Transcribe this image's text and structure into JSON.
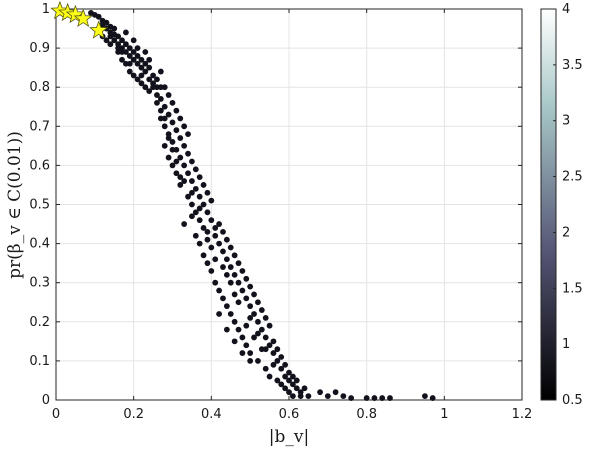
{
  "chart_data": {
    "type": "scatter",
    "title": "",
    "xlabel": "|b_v|",
    "ylabel": "pr(β_v ∈ C(0.01))",
    "xlim": [
      0,
      1.2
    ],
    "ylim": [
      0,
      1
    ],
    "grid": true,
    "xticks": [
      0,
      0.2,
      0.4,
      0.6,
      0.8,
      1,
      1.2
    ],
    "xtick_labels": [
      "0",
      "0.2",
      "0.4",
      "0.6",
      "0.8",
      "1",
      "1.2"
    ],
    "yticks": [
      0,
      0.1,
      0.2,
      0.3,
      0.4,
      0.5,
      0.6,
      0.7,
      0.8,
      0.9,
      1
    ],
    "ytick_labels": [
      "0",
      "0.1",
      "0.2",
      "0.3",
      "0.4",
      "0.5",
      "0.6",
      "0.7",
      "0.8",
      "0.9",
      "1"
    ],
    "colorbar": {
      "range": [
        0.5,
        4
      ],
      "ticks": [
        0.5,
        1,
        1.5,
        2,
        2.5,
        3,
        3.5,
        4
      ],
      "tick_labels": [
        "0.5",
        "1",
        "1.5",
        "2",
        "2.5",
        "3",
        "3.5",
        "4"
      ],
      "colormap": "bone"
    },
    "colors": {
      "points": "#12121c",
      "stars": "#ffff1a",
      "star_edge": "#5a5a10",
      "grid": "#e4e4e4",
      "axis": "#262626"
    },
    "stars": [
      {
        "x": 0.01,
        "y": 0.995
      },
      {
        "x": 0.03,
        "y": 0.99
      },
      {
        "x": 0.05,
        "y": 0.985
      },
      {
        "x": 0.07,
        "y": 0.975
      },
      {
        "x": 0.11,
        "y": 0.945
      }
    ],
    "points": [
      [
        0.09,
        0.99
      ],
      [
        0.1,
        0.985
      ],
      [
        0.11,
        0.98
      ],
      [
        0.12,
        0.97
      ],
      [
        0.12,
        0.96
      ],
      [
        0.13,
        0.965
      ],
      [
        0.13,
        0.95
      ],
      [
        0.14,
        0.955
      ],
      [
        0.14,
        0.94
      ],
      [
        0.15,
        0.95
      ],
      [
        0.15,
        0.935
      ],
      [
        0.15,
        0.92
      ],
      [
        0.16,
        0.93
      ],
      [
        0.16,
        0.91
      ],
      [
        0.17,
        0.92
      ],
      [
        0.17,
        0.9
      ],
      [
        0.18,
        0.91
      ],
      [
        0.18,
        0.89
      ],
      [
        0.19,
        0.9
      ],
      [
        0.19,
        0.88
      ],
      [
        0.2,
        0.89
      ],
      [
        0.2,
        0.87
      ],
      [
        0.21,
        0.88
      ],
      [
        0.21,
        0.86
      ],
      [
        0.22,
        0.87
      ],
      [
        0.22,
        0.85
      ],
      [
        0.23,
        0.86
      ],
      [
        0.23,
        0.84
      ],
      [
        0.24,
        0.85
      ],
      [
        0.25,
        0.83
      ],
      [
        0.12,
        0.93
      ],
      [
        0.13,
        0.92
      ],
      [
        0.14,
        0.91
      ],
      [
        0.16,
        0.89
      ],
      [
        0.17,
        0.87
      ],
      [
        0.18,
        0.86
      ],
      [
        0.19,
        0.84
      ],
      [
        0.2,
        0.83
      ],
      [
        0.21,
        0.82
      ],
      [
        0.22,
        0.81
      ],
      [
        0.23,
        0.8
      ],
      [
        0.24,
        0.79
      ],
      [
        0.25,
        0.8
      ],
      [
        0.26,
        0.82
      ],
      [
        0.27,
        0.84
      ],
      [
        0.18,
        0.94
      ],
      [
        0.2,
        0.92
      ],
      [
        0.21,
        0.9
      ],
      [
        0.23,
        0.89
      ],
      [
        0.24,
        0.87
      ],
      [
        0.26,
        0.78
      ],
      [
        0.26,
        0.76
      ],
      [
        0.27,
        0.74
      ],
      [
        0.27,
        0.72
      ],
      [
        0.28,
        0.75
      ],
      [
        0.28,
        0.7
      ],
      [
        0.29,
        0.73
      ],
      [
        0.29,
        0.68
      ],
      [
        0.3,
        0.71
      ],
      [
        0.3,
        0.66
      ],
      [
        0.31,
        0.69
      ],
      [
        0.31,
        0.64
      ],
      [
        0.32,
        0.67
      ],
      [
        0.32,
        0.62
      ],
      [
        0.33,
        0.65
      ],
      [
        0.33,
        0.6
      ],
      [
        0.34,
        0.63
      ],
      [
        0.34,
        0.58
      ],
      [
        0.35,
        0.61
      ],
      [
        0.35,
        0.56
      ],
      [
        0.36,
        0.59
      ],
      [
        0.36,
        0.54
      ],
      [
        0.37,
        0.57
      ],
      [
        0.37,
        0.52
      ],
      [
        0.38,
        0.55
      ],
      [
        0.38,
        0.5
      ],
      [
        0.39,
        0.53
      ],
      [
        0.39,
        0.48
      ],
      [
        0.4,
        0.51
      ],
      [
        0.4,
        0.46
      ],
      [
        0.3,
        0.76
      ],
      [
        0.31,
        0.74
      ],
      [
        0.32,
        0.72
      ],
      [
        0.33,
        0.7
      ],
      [
        0.34,
        0.68
      ],
      [
        0.29,
        0.78
      ],
      [
        0.28,
        0.65
      ],
      [
        0.3,
        0.6
      ],
      [
        0.32,
        0.57
      ],
      [
        0.34,
        0.52
      ],
      [
        0.41,
        0.44
      ],
      [
        0.41,
        0.42
      ],
      [
        0.42,
        0.45
      ],
      [
        0.42,
        0.4
      ],
      [
        0.43,
        0.43
      ],
      [
        0.43,
        0.38
      ],
      [
        0.44,
        0.41
      ],
      [
        0.44,
        0.36
      ],
      [
        0.45,
        0.39
      ],
      [
        0.45,
        0.34
      ],
      [
        0.46,
        0.37
      ],
      [
        0.46,
        0.32
      ],
      [
        0.47,
        0.35
      ],
      [
        0.47,
        0.3
      ],
      [
        0.48,
        0.33
      ],
      [
        0.48,
        0.28
      ],
      [
        0.49,
        0.31
      ],
      [
        0.49,
        0.26
      ],
      [
        0.5,
        0.29
      ],
      [
        0.5,
        0.24
      ],
      [
        0.51,
        0.27
      ],
      [
        0.51,
        0.22
      ],
      [
        0.52,
        0.25
      ],
      [
        0.52,
        0.2
      ],
      [
        0.53,
        0.23
      ],
      [
        0.53,
        0.18
      ],
      [
        0.54,
        0.21
      ],
      [
        0.54,
        0.16
      ],
      [
        0.55,
        0.19
      ],
      [
        0.55,
        0.14
      ],
      [
        0.36,
        0.42
      ],
      [
        0.37,
        0.4
      ],
      [
        0.38,
        0.37
      ],
      [
        0.39,
        0.35
      ],
      [
        0.4,
        0.33
      ],
      [
        0.41,
        0.3
      ],
      [
        0.42,
        0.28
      ],
      [
        0.43,
        0.26
      ],
      [
        0.44,
        0.24
      ],
      [
        0.45,
        0.22
      ],
      [
        0.46,
        0.2
      ],
      [
        0.47,
        0.18
      ],
      [
        0.48,
        0.16
      ],
      [
        0.49,
        0.14
      ],
      [
        0.5,
        0.12
      ],
      [
        0.42,
        0.22
      ],
      [
        0.44,
        0.18
      ],
      [
        0.46,
        0.15
      ],
      [
        0.48,
        0.12
      ],
      [
        0.5,
        0.1
      ],
      [
        0.56,
        0.15
      ],
      [
        0.56,
        0.12
      ],
      [
        0.57,
        0.13
      ],
      [
        0.57,
        0.1
      ],
      [
        0.58,
        0.11
      ],
      [
        0.58,
        0.08
      ],
      [
        0.59,
        0.09
      ],
      [
        0.59,
        0.06
      ],
      [
        0.6,
        0.07
      ],
      [
        0.6,
        0.05
      ],
      [
        0.61,
        0.06
      ],
      [
        0.61,
        0.04
      ],
      [
        0.62,
        0.05
      ],
      [
        0.62,
        0.03
      ],
      [
        0.63,
        0.02
      ],
      [
        0.64,
        0.03
      ],
      [
        0.52,
        0.1
      ],
      [
        0.54,
        0.08
      ],
      [
        0.55,
        0.06
      ],
      [
        0.57,
        0.05
      ],
      [
        0.58,
        0.04
      ],
      [
        0.6,
        0.02
      ],
      [
        0.53,
        0.13
      ],
      [
        0.51,
        0.16
      ],
      [
        0.49,
        0.19
      ],
      [
        0.56,
        0.09
      ],
      [
        0.59,
        0.03
      ],
      [
        0.61,
        0.01
      ],
      [
        0.63,
        0.01
      ],
      [
        0.65,
        0.01
      ],
      [
        0.68,
        0.02
      ],
      [
        0.7,
        0.01
      ],
      [
        0.72,
        0.02
      ],
      [
        0.74,
        0.01
      ],
      [
        0.76,
        0.005
      ],
      [
        0.8,
        0.005
      ],
      [
        0.82,
        0.005
      ],
      [
        0.84,
        0.005
      ],
      [
        0.86,
        0.005
      ],
      [
        0.95,
        0.01
      ],
      [
        0.97,
        0.005
      ],
      [
        0.32,
        0.55
      ],
      [
        0.35,
        0.5
      ],
      [
        0.37,
        0.46
      ],
      [
        0.38,
        0.44
      ],
      [
        0.39,
        0.41
      ],
      [
        0.4,
        0.39
      ],
      [
        0.27,
        0.8
      ],
      [
        0.28,
        0.8
      ],
      [
        0.22,
        0.83
      ],
      [
        0.25,
        0.81
      ],
      [
        0.26,
        0.8
      ],
      [
        0.33,
        0.45
      ],
      [
        0.35,
        0.47
      ],
      [
        0.31,
        0.58
      ],
      [
        0.29,
        0.62
      ],
      [
        0.36,
        0.48
      ],
      [
        0.45,
        0.3
      ],
      [
        0.47,
        0.25
      ],
      [
        0.5,
        0.21
      ],
      [
        0.52,
        0.17
      ],
      [
        0.54,
        0.13
      ],
      [
        0.44,
        0.32
      ],
      [
        0.46,
        0.27
      ],
      [
        0.43,
        0.34
      ],
      [
        0.41,
        0.36
      ],
      [
        0.39,
        0.43
      ],
      [
        0.37,
        0.49
      ],
      [
        0.35,
        0.53
      ],
      [
        0.33,
        0.56
      ],
      [
        0.31,
        0.61
      ],
      [
        0.3,
        0.64
      ],
      [
        0.29,
        0.67
      ],
      [
        0.28,
        0.72
      ],
      [
        0.27,
        0.77
      ],
      [
        0.24,
        0.82
      ],
      [
        0.19,
        0.86
      ],
      [
        0.17,
        0.89
      ],
      [
        0.16,
        0.9
      ],
      [
        0.14,
        0.93
      ]
    ]
  }
}
